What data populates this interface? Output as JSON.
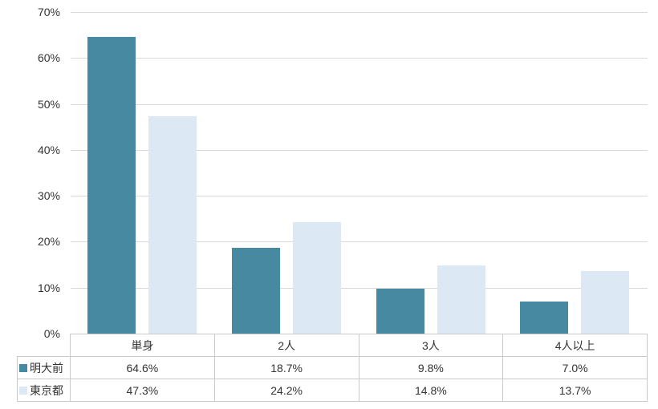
{
  "chart_data": {
    "type": "bar",
    "title": "",
    "categories": [
      "単身",
      "2人",
      "3人",
      "4人以上"
    ],
    "series": [
      {
        "name": "明大前",
        "color": "#4789a1",
        "values": [
          64.6,
          18.7,
          9.8,
          7.0
        ],
        "display": [
          "64.6%",
          "18.7%",
          "9.8%",
          "7.0%"
        ]
      },
      {
        "name": "東京都",
        "color": "#dce8f4",
        "values": [
          47.3,
          24.2,
          14.8,
          13.7
        ],
        "display": [
          "47.3%",
          "24.2%",
          "14.8%",
          "13.7%"
        ]
      }
    ],
    "y_axis": {
      "min": 0,
      "max": 70,
      "step": 10,
      "tick_labels": [
        "0%",
        "10%",
        "20%",
        "30%",
        "40%",
        "50%",
        "60%",
        "70%"
      ],
      "unit": "%"
    },
    "grid": true,
    "legend_position": "data-table-left",
    "data_table": true
  },
  "colors": {
    "series1": "#4789a1",
    "series2": "#dce8f4",
    "gridline": "#d9d9d9",
    "table_border": "#c9c9c9",
    "text": "#333333",
    "background": "#ffffff"
  }
}
